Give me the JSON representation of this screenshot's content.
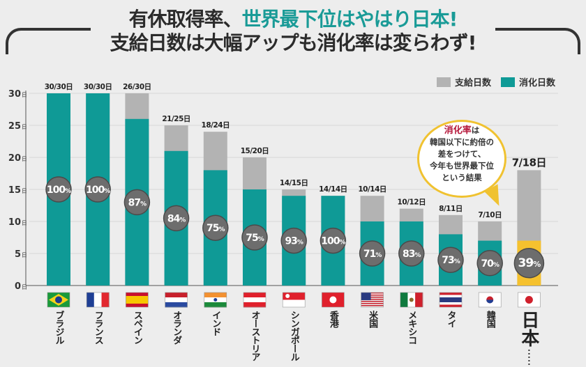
{
  "title": {
    "line1_prefix": "有休取得率、",
    "line1_accent": "世界最下位はやはり日本!",
    "line2": "支給日数は大幅アップも消化率は変らわず!"
  },
  "callout": {
    "highlight": "消化率",
    "rest1": "は",
    "line2": "韓国以下に約倍の",
    "line3": "差をつけて、",
    "line4": "今年も世界最下位",
    "line5": "という結果"
  },
  "colors": {
    "given": "#b3b3b3",
    "used": "#0f9a96",
    "japan_used": "#f5c12e",
    "circle": "#6d6d6d",
    "accent": "#1a9b97"
  },
  "chart_data": {
    "type": "bar",
    "title": "有休取得率、世界最下位はやはり日本!",
    "ylabel": "",
    "ylim": [
      0,
      30
    ],
    "yticks": [
      "0日",
      "5日",
      "10日",
      "15日",
      "20日",
      "25日",
      "30日"
    ],
    "ytick_values": [
      0,
      5,
      10,
      15,
      20,
      25,
      30
    ],
    "legend": [
      "支給日数",
      "消化日数"
    ],
    "legend_position": "top-right",
    "categories": [
      "ブラジル",
      "フランス",
      "スペイン",
      "オランダ",
      "インド",
      "オーストリア",
      "シンガポール",
      "香港",
      "米国",
      "メキシコ",
      "タイ",
      "韓国",
      "日本"
    ],
    "series": [
      {
        "name": "支給日数",
        "values": [
          30,
          30,
          30,
          25,
          24,
          20,
          15,
          14,
          14,
          12,
          11,
          10,
          18
        ]
      },
      {
        "name": "消化日数",
        "values": [
          30,
          30,
          26,
          21,
          18,
          15,
          14,
          14,
          10,
          10,
          8,
          7,
          7
        ]
      }
    ],
    "data_labels": [
      "30/30日",
      "30/30日",
      "26/30日",
      "21/25日",
      "18/24日",
      "15/20日",
      "14/15日",
      "14/14日",
      "10/14日",
      "10/12日",
      "8/11日",
      "7/10日",
      "7/18日"
    ],
    "rates": [
      "100%",
      "100%",
      "87%",
      "84%",
      "75%",
      "75%",
      "93%",
      "100%",
      "71%",
      "83%",
      "73%",
      "70%",
      "39%"
    ]
  },
  "flags": [
    "brazil-flag",
    "france-flag",
    "spain-flag",
    "netherlands-flag",
    "india-flag",
    "austria-flag",
    "singapore-flag",
    "hongkong-flag",
    "usa-flag",
    "mexico-flag",
    "thailand-flag",
    "korea-flag",
    "japan-flag"
  ]
}
